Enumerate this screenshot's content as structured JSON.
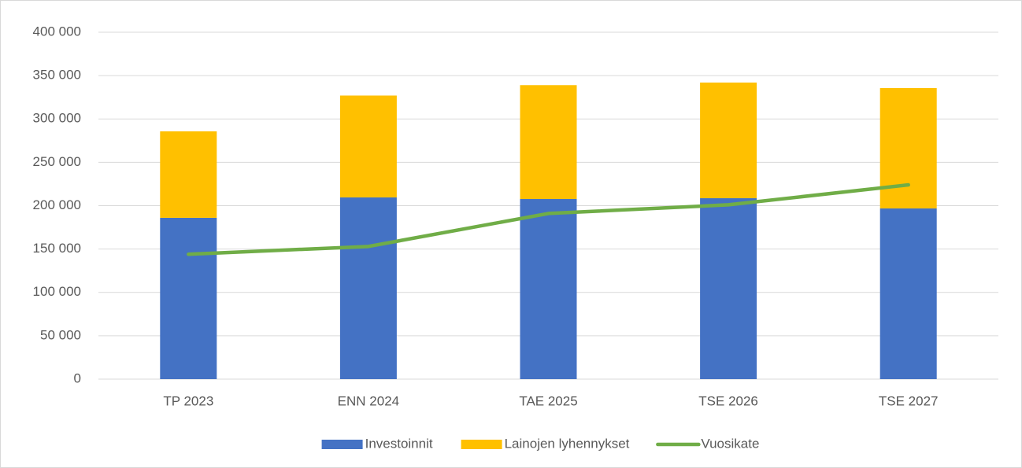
{
  "chart_data": {
    "type": "bar",
    "stacked": true,
    "categories": [
      "TP 2023",
      "ENN 2024",
      "TAE 2025",
      "TSE 2026",
      "TSE 2027"
    ],
    "series": [
      {
        "name": "Investoinnit",
        "type": "bar",
        "color": "#4472c4",
        "values": [
          186000,
          209500,
          207700,
          208600,
          196800
        ]
      },
      {
        "name": "Lainojen lyhennykset",
        "type": "bar",
        "color": "#ffc000",
        "values": [
          99700,
          117500,
          131300,
          133400,
          138800
        ]
      },
      {
        "name": "Vuosikate",
        "type": "line",
        "color": "#70ad47",
        "values": [
          144000,
          153000,
          191000,
          201000,
          224000
        ]
      }
    ],
    "ylim": [
      0,
      400000
    ],
    "yticks": [
      0,
      {
        "value": 50000,
        "label": "50 000"
      },
      {
        "value": 100000,
        "label": "100 000"
      },
      {
        "value": 150000,
        "label": "150 000"
      },
      {
        "value": 200000,
        "label": "200 000"
      },
      {
        "value": 250000,
        "label": "250 000"
      },
      {
        "value": 300000,
        "label": "300 000"
      },
      {
        "value": 350000,
        "label": "350 000"
      },
      {
        "value": 400000,
        "label": "400 000"
      }
    ],
    "grid": true,
    "legend": "bottom"
  }
}
